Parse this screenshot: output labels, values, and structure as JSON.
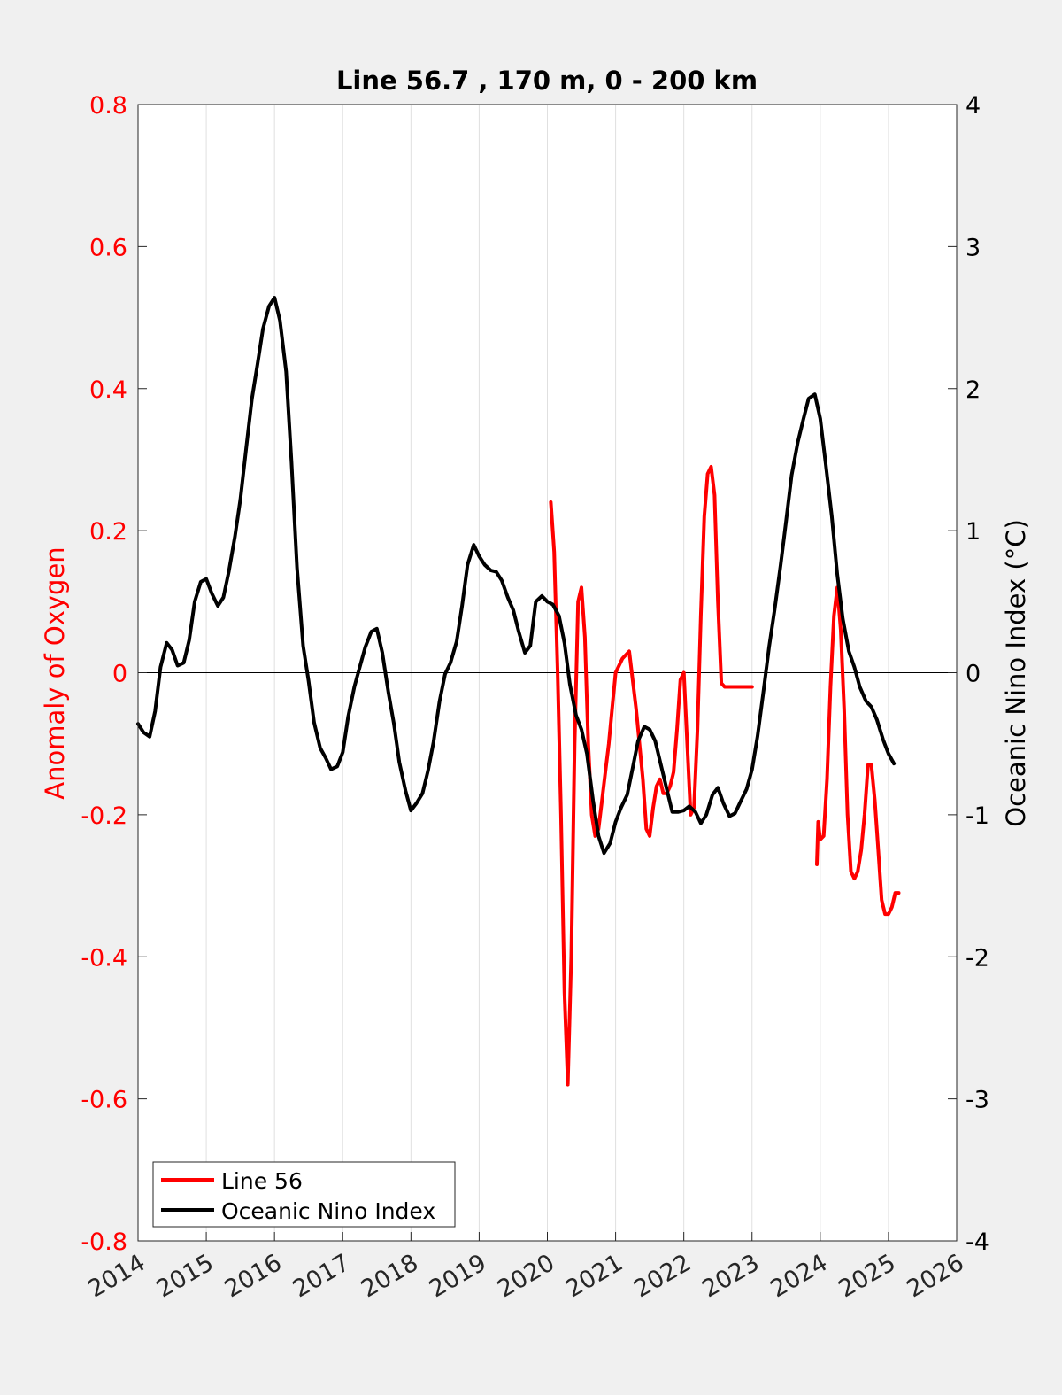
{
  "chart_data": {
    "type": "line",
    "title": "Line 56.7 , 170 m, 0 - 200 km",
    "xlabel": "",
    "ylabel_left": "Anomaly of Oxygen",
    "ylabel_right": "Oceanic Nino Index (°C)",
    "xlim": [
      2014,
      2026
    ],
    "ylim_left": [
      -0.8,
      0.8
    ],
    "ylim_right": [
      -4,
      4
    ],
    "x_ticks": [
      2014,
      2015,
      2016,
      2017,
      2018,
      2019,
      2020,
      2021,
      2022,
      2023,
      2024,
      2025,
      2026
    ],
    "x_tick_labels": [
      "2014",
      "2015",
      "2016",
      "2017",
      "2018",
      "2019",
      "2020",
      "2021",
      "2022",
      "2023",
      "2024",
      "2025",
      "2026"
    ],
    "y_left_ticks": [
      0.8,
      0.6,
      0.4,
      0.2,
      0,
      -0.2,
      -0.4,
      -0.6,
      -0.8
    ],
    "y_left_tick_labels": [
      "0.8",
      "0.6",
      "0.4",
      "0.2",
      "0",
      "-0.2",
      "-0.4",
      "-0.6",
      "-0.8"
    ],
    "y_right_ticks": [
      4,
      3,
      2,
      1,
      0,
      -1,
      -2,
      -3,
      -4
    ],
    "y_right_tick_labels": [
      "4",
      "3",
      "2",
      "1",
      "0",
      "-1",
      "-2",
      "-3",
      "-4"
    ],
    "grid": "vertical",
    "zero_line": true,
    "legend_position": "bottom-left",
    "colors": {
      "left_axis": "#ff0000",
      "right_axis": "#000000",
      "background": "#f0f0f0",
      "plot_area": "#ffffff",
      "grid": "#e0e0e0"
    },
    "series": [
      {
        "name": "Line 56",
        "axis": "left",
        "color": "#ff0000",
        "segments": [
          {
            "x": [
              2020.05,
              2020.1,
              2020.15,
              2020.2,
              2020.25,
              2020.3,
              2020.35,
              2020.4,
              2020.45,
              2020.5,
              2020.55,
              2020.6,
              2020.65,
              2020.7,
              2020.75,
              2020.8,
              2020.85,
              2020.9,
              2020.95,
              2021.0,
              2021.1,
              2021.2,
              2021.3,
              2021.4,
              2021.45,
              2021.5,
              2021.55,
              2021.6,
              2021.65,
              2021.7,
              2021.75,
              2021.8,
              2021.85,
              2021.9,
              2021.95,
              2022.0,
              2022.05,
              2022.1,
              2022.15,
              2022.2,
              2022.25,
              2022.3,
              2022.35,
              2022.4,
              2022.45,
              2022.5,
              2022.55,
              2022.6,
              2022.65,
              2022.7,
              2022.75,
              2022.8,
              2022.85,
              2022.9,
              2022.95,
              2023.0
            ],
            "y": [
              0.24,
              0.17,
              0.0,
              -0.2,
              -0.45,
              -0.58,
              -0.4,
              -0.1,
              0.1,
              0.12,
              0.05,
              -0.1,
              -0.2,
              -0.23,
              -0.22,
              -0.18,
              -0.14,
              -0.1,
              -0.05,
              0.0,
              0.02,
              0.03,
              -0.05,
              -0.15,
              -0.22,
              -0.23,
              -0.19,
              -0.16,
              -0.15,
              -0.17,
              -0.17,
              -0.16,
              -0.14,
              -0.08,
              -0.01,
              0.0,
              -0.1,
              -0.2,
              -0.19,
              -0.08,
              0.08,
              0.22,
              0.28,
              0.29,
              0.25,
              0.1,
              -0.015,
              -0.02,
              -0.02,
              -0.02,
              -0.02,
              -0.02,
              -0.02,
              -0.02,
              -0.02,
              -0.02
            ]
          },
          {
            "x": [
              2023.95,
              2023.97,
              2024.0,
              2024.05,
              2024.1,
              2024.15,
              2024.2,
              2024.25,
              2024.3,
              2024.35,
              2024.4,
              2024.45,
              2024.5,
              2024.55,
              2024.6,
              2024.65,
              2024.7,
              2024.75,
              2024.8,
              2024.85,
              2024.9,
              2024.95,
              2025.0,
              2025.05,
              2025.1,
              2025.15
            ],
            "y": [
              -0.27,
              -0.21,
              -0.235,
              -0.23,
              -0.15,
              -0.02,
              0.08,
              0.12,
              0.06,
              -0.05,
              -0.2,
              -0.28,
              -0.29,
              -0.28,
              -0.25,
              -0.2,
              -0.13,
              -0.13,
              -0.18,
              -0.25,
              -0.32,
              -0.34,
              -0.34,
              -0.33,
              -0.31,
              -0.31
            ]
          }
        ]
      },
      {
        "name": "Oceanic Nino Index",
        "axis": "right",
        "color": "#000000",
        "segments": [
          {
            "x": [
              2014.0,
              2014.08,
              2014.17,
              2014.25,
              2014.33,
              2014.42,
              2014.5,
              2014.58,
              2014.67,
              2014.75,
              2014.83,
              2014.92,
              2015.0,
              2015.08,
              2015.17,
              2015.25,
              2015.33,
              2015.42,
              2015.5,
              2015.58,
              2015.67,
              2015.75,
              2015.83,
              2015.92,
              2016.0,
              2016.08,
              2016.17,
              2016.25,
              2016.33,
              2016.42,
              2016.5,
              2016.58,
              2016.67,
              2016.75,
              2016.83,
              2016.92,
              2017.0,
              2017.08,
              2017.17,
              2017.25,
              2017.33,
              2017.42,
              2017.5,
              2017.58,
              2017.67,
              2017.75,
              2017.83,
              2017.92,
              2018.0,
              2018.08,
              2018.17,
              2018.25,
              2018.33,
              2018.42,
              2018.5,
              2018.58,
              2018.67,
              2018.75,
              2018.83,
              2018.92,
              2019.0,
              2019.08,
              2019.17,
              2019.25,
              2019.33,
              2019.42,
              2019.5,
              2019.58,
              2019.67,
              2019.75,
              2019.83,
              2019.92,
              2020.0,
              2020.08,
              2020.17,
              2020.25,
              2020.33,
              2020.42,
              2020.5,
              2020.58,
              2020.67,
              2020.75,
              2020.83,
              2020.92,
              2021.0,
              2021.08,
              2021.17,
              2021.25,
              2021.33,
              2021.42,
              2021.5,
              2021.58,
              2021.67,
              2021.75,
              2021.83,
              2021.92,
              2022.0,
              2022.08,
              2022.17,
              2022.25,
              2022.33,
              2022.42,
              2022.5,
              2022.58,
              2022.67,
              2022.75,
              2022.83,
              2022.92,
              2023.0,
              2023.08,
              2023.17,
              2023.25,
              2023.33,
              2023.42,
              2023.5,
              2023.58,
              2023.67,
              2023.75,
              2023.83,
              2023.92,
              2024.0,
              2024.08,
              2024.17,
              2024.25,
              2024.33,
              2024.42,
              2024.5,
              2024.58,
              2024.67,
              2024.75,
              2024.83,
              2024.92,
              2025.0,
              2025.08
            ],
            "y": [
              -0.36,
              -0.42,
              -0.45,
              -0.27,
              0.04,
              0.21,
              0.16,
              0.05,
              0.07,
              0.23,
              0.5,
              0.64,
              0.66,
              0.56,
              0.47,
              0.53,
              0.71,
              0.96,
              1.22,
              1.56,
              1.93,
              2.17,
              2.42,
              2.58,
              2.64,
              2.48,
              2.12,
              1.48,
              0.74,
              0.19,
              -0.06,
              -0.35,
              -0.53,
              -0.6,
              -0.68,
              -0.66,
              -0.56,
              -0.31,
              -0.1,
              0.04,
              0.18,
              0.29,
              0.31,
              0.14,
              -0.14,
              -0.36,
              -0.63,
              -0.83,
              -0.97,
              -0.92,
              -0.85,
              -0.69,
              -0.49,
              -0.2,
              -0.01,
              0.07,
              0.22,
              0.47,
              0.76,
              0.9,
              0.82,
              0.76,
              0.72,
              0.71,
              0.65,
              0.53,
              0.44,
              0.29,
              0.14,
              0.19,
              0.5,
              0.54,
              0.5,
              0.48,
              0.4,
              0.21,
              -0.08,
              -0.3,
              -0.4,
              -0.57,
              -0.9,
              -1.15,
              -1.27,
              -1.2,
              -1.05,
              -0.95,
              -0.86,
              -0.67,
              -0.48,
              -0.38,
              -0.4,
              -0.48,
              -0.66,
              -0.82,
              -0.98,
              -0.98,
              -0.97,
              -0.94,
              -0.98,
              -1.06,
              -1.0,
              -0.86,
              -0.81,
              -0.92,
              -1.01,
              -0.99,
              -0.91,
              -0.82,
              -0.68,
              -0.45,
              -0.12,
              0.18,
              0.44,
              0.76,
              1.07,
              1.39,
              1.62,
              1.78,
              1.93,
              1.96,
              1.79,
              1.47,
              1.1,
              0.69,
              0.38,
              0.15,
              0.04,
              -0.1,
              -0.2,
              -0.24,
              -0.33,
              -0.47,
              -0.57,
              -0.64
            ]
          }
        ]
      }
    ]
  },
  "legend": {
    "items": [
      {
        "label": "Line 56",
        "color": "#ff0000"
      },
      {
        "label": "Oceanic Nino Index",
        "color": "#000000"
      }
    ]
  }
}
